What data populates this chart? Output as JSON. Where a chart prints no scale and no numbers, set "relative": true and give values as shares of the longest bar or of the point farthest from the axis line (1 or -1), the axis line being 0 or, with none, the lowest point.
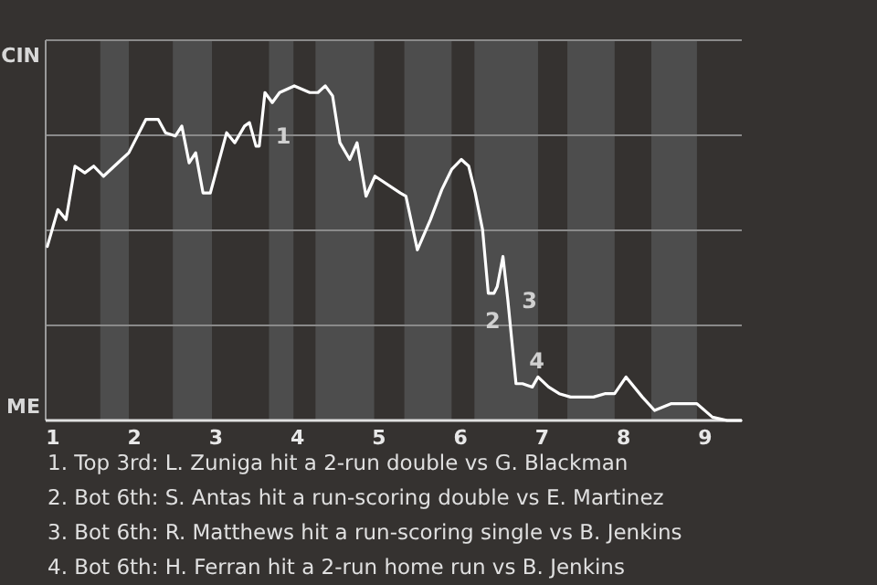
{
  "chart_data": {
    "type": "line",
    "relative": true,
    "x": [
      0.93,
      1.06,
      1.16,
      1.27,
      1.39,
      1.5,
      1.62,
      1.84,
      1.93,
      2.14,
      2.29,
      2.38,
      2.5,
      2.58,
      2.67,
      2.75,
      2.84,
      2.93,
      3.13,
      3.23,
      3.35,
      3.41,
      3.49,
      3.53,
      3.6,
      3.69,
      3.78,
      3.96,
      4.15,
      4.25,
      4.34,
      4.43,
      4.52,
      4.64,
      4.73,
      4.84,
      4.95,
      5.26,
      5.33,
      5.47,
      5.63,
      5.77,
      5.89,
      6.01,
      6.1,
      6.18,
      6.27,
      6.34,
      6.41,
      6.45,
      6.52,
      6.58,
      6.68,
      6.76,
      6.88,
      6.95,
      7.08,
      7.21,
      7.35,
      7.49,
      7.63,
      7.77,
      7.89,
      8.03,
      8.23,
      8.38,
      8.58,
      8.9,
      9.09,
      9.27,
      9.44
    ],
    "series": [
      {
        "color": "#ffffff",
        "values": [
          0.52,
          0.63,
          0.6,
          0.76,
          0.74,
          0.76,
          0.73,
          0.78,
          0.8,
          0.9,
          0.9,
          0.86,
          0.85,
          0.88,
          0.77,
          0.8,
          0.68,
          0.68,
          0.86,
          0.83,
          0.88,
          0.89,
          0.82,
          0.82,
          0.98,
          0.95,
          0.98,
          1,
          0.98,
          0.98,
          1,
          0.97,
          0.83,
          0.78,
          0.83,
          0.67,
          0.73,
          0.68,
          0.67,
          0.51,
          0.6,
          0.69,
          0.75,
          0.78,
          0.76,
          0.68,
          0.57,
          0.38,
          0.38,
          0.4,
          0.49,
          0.36,
          0.11,
          0.11,
          0.1,
          0.13,
          0.1,
          0.08,
          0.07,
          0.07,
          0.07,
          0.08,
          0.08,
          0.13,
          0.07,
          0.03,
          0.05,
          0.05,
          0.01,
          0,
          0
        ]
      }
    ],
    "xlim": [
      0.91,
      9.45
    ],
    "xticks": [
      1,
      2,
      3,
      4,
      5,
      6,
      7,
      8,
      9
    ],
    "grid": "y",
    "marker": "none",
    "line_style": "solid",
    "bands": [
      {
        "axis": "x",
        "from": 1.58,
        "to": 1.93,
        "color": "#4d4d4d"
      },
      {
        "axis": "x",
        "from": 2.47,
        "to": 2.95,
        "color": "#4d4d4d"
      },
      {
        "axis": "x",
        "from": 3.65,
        "to": 3.95,
        "color": "#4d4d4d"
      },
      {
        "axis": "x",
        "from": 4.22,
        "to": 4.94,
        "color": "#4d4d4d"
      },
      {
        "axis": "x",
        "from": 5.31,
        "to": 5.89,
        "color": "#4d4d4d"
      },
      {
        "axis": "x",
        "from": 6.17,
        "to": 6.95,
        "color": "#4d4d4d"
      },
      {
        "axis": "x",
        "from": 7.31,
        "to": 7.89,
        "color": "#4d4d4d"
      },
      {
        "axis": "x",
        "from": 8.34,
        "to": 8.9,
        "color": "#4d4d4d"
      }
    ],
    "annotations": [
      "CIN",
      "ME",
      {
        "text": "1",
        "x": 3.62,
        "y": 0.85
      },
      {
        "text": "2",
        "x": 6.19,
        "y": 0.3
      },
      {
        "text": "3",
        "x": 6.64,
        "y": 0.36
      },
      {
        "text": "4",
        "x": 6.73,
        "y": 0.18
      },
      "1. Top 3rd: L. Zuniga hit a 2-run double vs G. Blackman",
      "2. Bot 6th: S. Antas hit a run-scoring double vs E. Martinez",
      "3. Bot 6th: R. Matthews hit a run-scoring single vs B. Jenkins",
      "4. Bot 6th: H. Ferran hit a 2-run home run vs B. Jenkins"
    ]
  }
}
